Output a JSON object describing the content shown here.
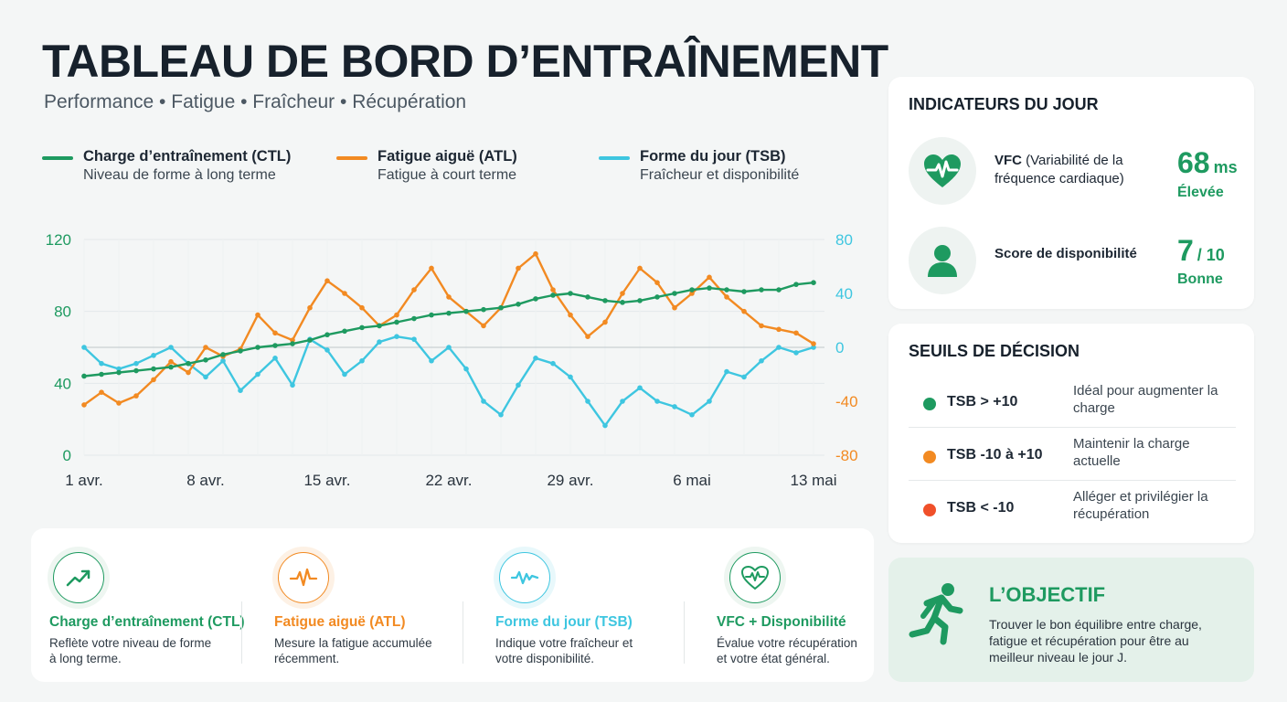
{
  "header": {
    "title": "TABLEAU DE BORD D’ENTRAÎNEMENT",
    "subtitle": "Performance • Fatigue • Fraîcheur • Récupération"
  },
  "legend": [
    {
      "name": "Charge d’entraînement (CTL)",
      "desc": "Niveau de forme à long terme",
      "color": "#1e9a60"
    },
    {
      "name": "Fatigue aiguë (ATL)",
      "desc": "Fatigue à court terme",
      "color": "#f28a22"
    },
    {
      "name": "Forme du jour (TSB)",
      "desc": "Fraîcheur et disponibilité",
      "color": "#3ec6e0"
    }
  ],
  "chart_data": {
    "type": "line",
    "x_tick_labels": [
      "1 avr.",
      "8 avr.",
      "15 avr.",
      "22 avr.",
      "29 avr.",
      "6 mai",
      "13 mai"
    ],
    "x_tick_days": [
      0,
      7,
      14,
      21,
      28,
      35,
      42
    ],
    "y_left": {
      "range": [
        0,
        120
      ],
      "ticks": [
        "0",
        "40",
        "80",
        "120"
      ],
      "color": "#1e9a60"
    },
    "y_right": {
      "range": [
        -80,
        80
      ],
      "ticks": [
        "-80",
        "-40",
        "0",
        "40",
        "80"
      ],
      "color": "#3ec6e0",
      "negative_color": "#f28a22"
    },
    "grid": true,
    "series": [
      {
        "name": "Charge d’entraînement (CTL)",
        "axis": "left",
        "color": "#1e9a60",
        "x": [
          0,
          1,
          2,
          3,
          4,
          5,
          6,
          7,
          8,
          9,
          10,
          11,
          12,
          13,
          14,
          15,
          16,
          17,
          18,
          19,
          20,
          21,
          22,
          23,
          24,
          25,
          26,
          27,
          28,
          29,
          30,
          31,
          32,
          33,
          34,
          35,
          36,
          37,
          38,
          39,
          40,
          41,
          42
        ],
        "y": [
          44,
          45,
          46,
          47,
          48,
          49,
          51,
          53,
          56,
          58,
          60,
          61,
          62,
          64,
          67,
          69,
          71,
          72,
          74,
          76,
          78,
          79,
          80,
          81,
          82,
          84,
          87,
          89,
          90,
          88,
          86,
          85,
          86,
          88,
          90,
          92,
          93,
          92,
          91,
          92,
          92,
          95,
          96
        ]
      },
      {
        "name": "Fatigue aiguë (ATL)",
        "axis": "left",
        "color": "#f28a22",
        "x": [
          0,
          1,
          2,
          3,
          4,
          5,
          6,
          7,
          8,
          9,
          10,
          11,
          12,
          13,
          14,
          15,
          16,
          17,
          18,
          19,
          20,
          21,
          22,
          23,
          24,
          25,
          26,
          27,
          28,
          29,
          30,
          31,
          32,
          33,
          34,
          35,
          36,
          37,
          38,
          39,
          40,
          41,
          42
        ],
        "y": [
          28,
          35,
          29,
          33,
          42,
          52,
          46,
          60,
          55,
          59,
          78,
          68,
          64,
          82,
          97,
          90,
          82,
          72,
          78,
          92,
          104,
          88,
          80,
          72,
          82,
          104,
          112,
          92,
          78,
          66,
          74,
          90,
          104,
          96,
          82,
          90,
          99,
          88,
          80,
          72,
          70,
          68,
          62
        ]
      },
      {
        "name": "Forme du jour (TSB)",
        "axis": "right",
        "color": "#3ec6e0",
        "x": [
          0,
          1,
          2,
          3,
          4,
          5,
          6,
          7,
          8,
          9,
          10,
          11,
          12,
          13,
          14,
          15,
          16,
          17,
          18,
          19,
          20,
          21,
          22,
          23,
          24,
          25,
          26,
          27,
          28,
          29,
          30,
          31,
          32,
          33,
          34,
          35,
          36,
          37,
          38,
          39,
          40,
          41,
          42
        ],
        "y": [
          0,
          -12,
          -16,
          -12,
          -6,
          0,
          -12,
          -22,
          -10,
          -32,
          -20,
          -8,
          -28,
          6,
          -2,
          -20,
          -10,
          4,
          8,
          6,
          -10,
          0,
          -16,
          -40,
          -50,
          -28,
          -8,
          -12,
          -22,
          -40,
          -58,
          -40,
          -30,
          -40,
          -44,
          -50,
          -40,
          -18,
          -22,
          -10,
          0,
          -4,
          0
        ]
      }
    ]
  },
  "indicators": {
    "title": "INDICATEURS DU JOUR",
    "items": [
      {
        "label_bold": "VFC",
        "label_rest": " (Variabilité de la fréquence cardiaque)",
        "value": "68",
        "unit": "ms",
        "status": "Élevée",
        "icon": "heart-pulse-icon"
      },
      {
        "label_bold": "Score de disponibilité",
        "label_rest": "",
        "value": "7",
        "unit": "/ 10",
        "status": "Bonne",
        "icon": "user-icon"
      }
    ]
  },
  "thresholds": {
    "title": "SEUILS DE DÉCISION",
    "rows": [
      {
        "condition": "TSB > +10",
        "desc": "Idéal pour augmenter la charge",
        "color": "#1e9a60"
      },
      {
        "condition": "TSB -10 à +10",
        "desc": "Maintenir la charge actuelle",
        "color": "#f28a22"
      },
      {
        "condition": "TSB < -10",
        "desc": "Alléger et privilégier la récupération",
        "color": "#f0502a"
      }
    ]
  },
  "goal": {
    "title": "L’OBJECTIF",
    "text": "Trouver le bon équilibre entre charge, fatigue et récupération pour être au meilleur niveau le jour J.",
    "icon": "runner-icon"
  },
  "bottom_cards": [
    {
      "title": "Charge d’entraînement (CTL)",
      "desc": "Reflète votre niveau de forme à long terme.",
      "color": "#1e9a60",
      "icon": "trend-up-icon"
    },
    {
      "title": "Fatigue aiguë (ATL)",
      "desc": "Mesure la fatigue accumulée récemment.",
      "color": "#f28a22",
      "icon": "pulse-wave-icon"
    },
    {
      "title": "Forme du jour (TSB)",
      "desc": "Indique votre fraîcheur et votre disponibilité.",
      "color": "#3ec6e0",
      "icon": "wave-icon"
    },
    {
      "title": "VFC + Disponibilité",
      "desc": "Évalue votre récupération et votre état général.",
      "color": "#1e9a60",
      "icon": "heart-wave-icon"
    }
  ]
}
